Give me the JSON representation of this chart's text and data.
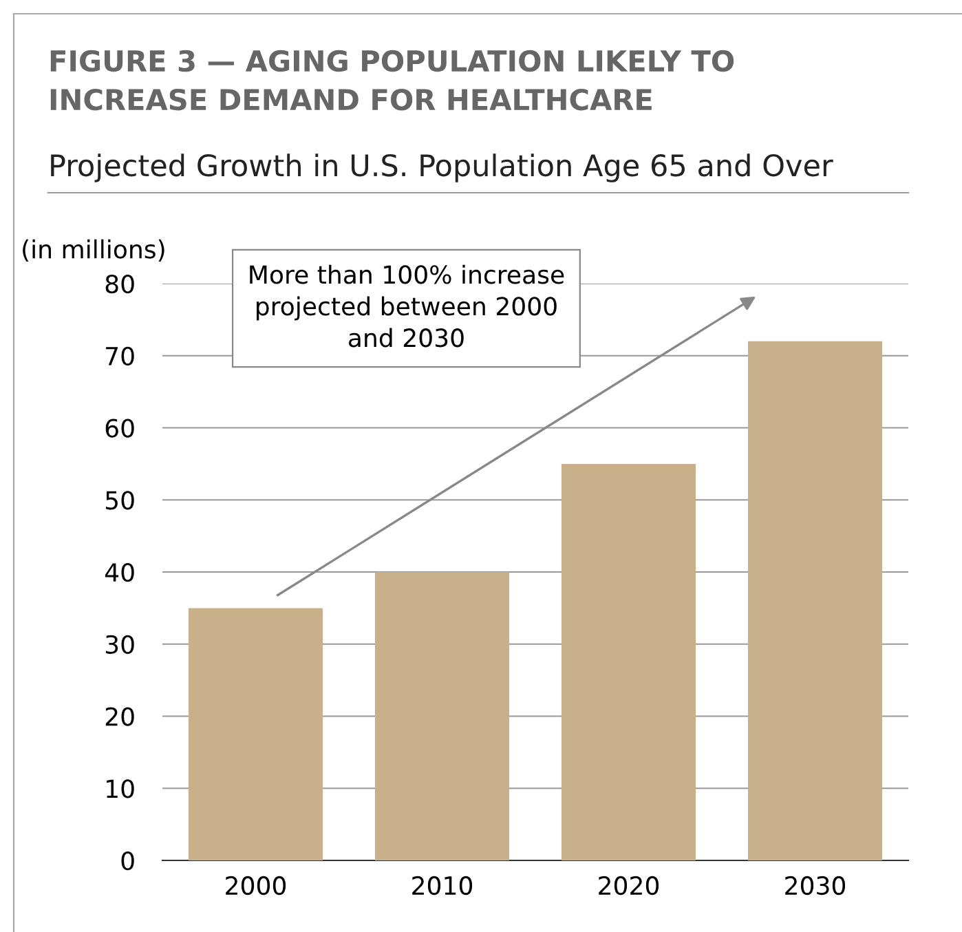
{
  "chart_data": {
    "type": "bar",
    "title": "FIGURE 3 — AGING POPULATION LIKELY TO\nINCREASE DEMAND FOR HEALTHCARE",
    "subtitle": "Projected Growth in U.S. Population Age 65 and Over",
    "ylabel": "(in millions)",
    "categories": [
      "2000",
      "2010",
      "2020",
      "2030"
    ],
    "values": [
      35,
      40,
      55,
      72
    ],
    "color": "#c8b08a",
    "ylim": [
      0,
      80
    ],
    "yticks": [
      0,
      10,
      20,
      30,
      40,
      50,
      60,
      70,
      80
    ],
    "grid": "y",
    "legend": false,
    "annotations": [
      "More than 100% increase\nprojected between 2000\nand 2030"
    ]
  }
}
